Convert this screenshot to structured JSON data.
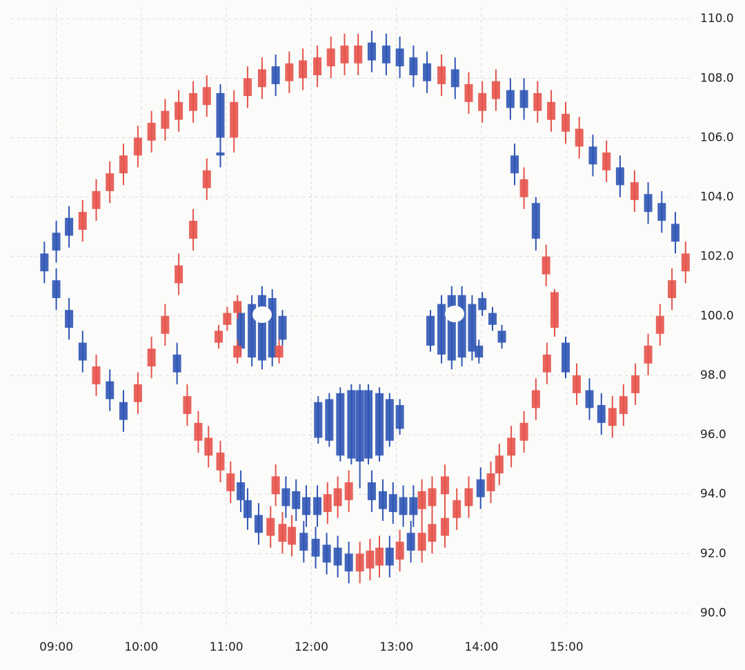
{
  "chart_data": {
    "type": "candlestick",
    "up_color": "#e5534b",
    "down_color": "#2f55b5",
    "grid": true,
    "xlim": [
      8.46,
      16.45
    ],
    "ylim": [
      89.5,
      110.4
    ],
    "xticks": [
      {
        "value": 9,
        "label": "09:00"
      },
      {
        "value": 10,
        "label": "10:00"
      },
      {
        "value": 11,
        "label": "11:00"
      },
      {
        "value": 12,
        "label": "12:00"
      },
      {
        "value": 13,
        "label": "13:00"
      },
      {
        "value": 14,
        "label": "14:00"
      },
      {
        "value": 15,
        "label": "15:00"
      }
    ],
    "yticks": [
      {
        "value": 90,
        "label": "90.0"
      },
      {
        "value": 92,
        "label": "92.0"
      },
      {
        "value": 94,
        "label": "94.0"
      },
      {
        "value": 96,
        "label": "96.0"
      },
      {
        "value": 98,
        "label": "98.0"
      },
      {
        "value": 100,
        "label": "100.0"
      },
      {
        "value": 102,
        "label": "102.0"
      },
      {
        "value": 104,
        "label": "104.0"
      },
      {
        "value": 106,
        "label": "106.0"
      },
      {
        "value": 108,
        "label": "108.0"
      },
      {
        "value": 110,
        "label": "110.0"
      }
    ],
    "x": [
      8.86,
      9.0,
      9.15,
      9.31,
      9.47,
      9.63,
      9.79,
      9.96,
      10.12,
      10.28,
      10.44,
      10.61,
      10.77,
      10.93,
      11.09,
      11.25,
      11.42,
      11.58,
      11.74,
      11.9,
      12.07,
      12.23,
      12.39,
      12.55,
      12.71,
      12.88,
      13.04,
      13.2,
      13.36,
      13.53,
      13.69,
      13.85,
      14.01,
      14.17,
      14.34,
      14.5,
      14.66,
      14.82,
      14.99,
      15.15,
      15.31,
      15.47,
      15.63,
      15.8,
      15.96,
      16.12,
      16.28,
      16.4,
      9.0,
      9.15,
      9.31,
      9.47,
      9.63,
      9.79,
      9.96,
      10.12,
      10.28,
      10.44,
      10.61,
      10.77,
      10.93,
      10.42,
      10.54,
      10.67,
      10.79,
      10.93,
      11.05,
      11.17,
      11.25,
      11.38,
      11.52,
      11.66,
      11.77,
      11.91,
      12.05,
      12.18,
      12.31,
      12.44,
      12.57,
      12.69,
      12.8,
      12.92,
      13.04,
      13.17,
      13.3,
      13.42,
      13.57,
      13.71,
      13.85,
      13.99,
      14.11,
      14.21,
      14.35,
      14.5,
      14.64,
      14.77,
      14.39,
      14.5,
      14.64,
      14.76,
      14.86,
      14.99,
      15.12,
      15.27,
      15.41,
      15.54,
      15.67,
      15.81,
      15.96,
      16.1,
      16.24,
      11.58,
      11.7,
      11.82,
      11.94,
      12.07,
      12.19,
      12.31,
      12.44,
      12.71,
      12.84,
      12.96,
      13.08,
      13.2,
      13.3,
      13.42,
      13.57,
      12.08,
      12.21,
      12.34,
      12.47,
      12.57,
      12.67,
      12.8,
      12.92,
      13.04,
      11.17,
      11.3,
      11.42,
      11.54,
      11.66,
      13.4,
      13.53,
      13.65,
      13.77,
      13.89,
      10.91,
      11.01,
      11.13,
      11.13,
      11.62,
      14.01,
      14.13,
      14.24,
      13.97
    ],
    "ohlc": [
      [
        102.1,
        102.5,
        101.1,
        101.5
      ],
      [
        102.8,
        103.2,
        101.8,
        102.2
      ],
      [
        103.3,
        103.7,
        102.3,
        102.7
      ],
      [
        102.9,
        103.9,
        102.5,
        103.5
      ],
      [
        103.6,
        104.6,
        103.2,
        104.2
      ],
      [
        104.2,
        105.2,
        103.8,
        104.8
      ],
      [
        104.8,
        105.8,
        104.4,
        105.4
      ],
      [
        105.4,
        106.4,
        105.0,
        106.0
      ],
      [
        105.9,
        106.9,
        105.5,
        106.5
      ],
      [
        106.3,
        107.3,
        105.9,
        106.9
      ],
      [
        106.6,
        107.6,
        106.2,
        107.2
      ],
      [
        106.9,
        107.9,
        106.5,
        107.5
      ],
      [
        107.1,
        108.1,
        106.7,
        107.7
      ],
      [
        107.5,
        107.8,
        105.8,
        106.0
      ],
      [
        106.0,
        107.6,
        105.5,
        107.2
      ],
      [
        107.4,
        108.4,
        107.0,
        108.0
      ],
      [
        107.7,
        108.7,
        107.3,
        108.3
      ],
      [
        108.4,
        108.8,
        107.4,
        107.8
      ],
      [
        107.9,
        108.9,
        107.5,
        108.5
      ],
      [
        108.0,
        109.0,
        107.6,
        108.6
      ],
      [
        108.1,
        109.1,
        107.7,
        108.7
      ],
      [
        108.4,
        109.4,
        108.0,
        109.0
      ],
      [
        108.5,
        109.5,
        108.1,
        109.1
      ],
      [
        108.5,
        109.5,
        108.1,
        109.1
      ],
      [
        109.2,
        109.6,
        108.2,
        108.6
      ],
      [
        109.1,
        109.5,
        108.1,
        108.5
      ],
      [
        109.0,
        109.4,
        108.0,
        108.4
      ],
      [
        108.7,
        109.1,
        107.7,
        108.1
      ],
      [
        108.5,
        108.9,
        107.5,
        107.9
      ],
      [
        107.8,
        108.8,
        107.4,
        108.4
      ],
      [
        108.3,
        108.7,
        107.3,
        107.7
      ],
      [
        107.2,
        108.2,
        106.8,
        107.8
      ],
      [
        106.9,
        107.9,
        106.5,
        107.5
      ],
      [
        107.3,
        108.3,
        106.9,
        107.9
      ],
      [
        107.6,
        108.0,
        106.6,
        107.0
      ],
      [
        107.6,
        108.0,
        106.6,
        107.0
      ],
      [
        106.9,
        107.9,
        106.5,
        107.5
      ],
      [
        106.6,
        107.6,
        106.2,
        107.2
      ],
      [
        106.2,
        107.2,
        105.8,
        106.8
      ],
      [
        105.7,
        106.7,
        105.3,
        106.3
      ],
      [
        105.7,
        106.1,
        104.7,
        105.1
      ],
      [
        104.9,
        105.9,
        104.5,
        105.5
      ],
      [
        105.0,
        105.4,
        104.0,
        104.4
      ],
      [
        103.9,
        104.9,
        103.5,
        104.5
      ],
      [
        104.1,
        104.5,
        103.1,
        103.5
      ],
      [
        103.8,
        104.2,
        102.8,
        103.2
      ],
      [
        103.1,
        103.5,
        102.1,
        102.5
      ],
      [
        101.5,
        102.5,
        101.1,
        102.1
      ],
      [
        101.2,
        101.6,
        100.2,
        100.6
      ],
      [
        100.2,
        100.6,
        99.2,
        99.6
      ],
      [
        99.1,
        99.5,
        98.1,
        98.5
      ],
      [
        97.7,
        98.7,
        97.3,
        98.3
      ],
      [
        97.8,
        98.2,
        96.8,
        97.2
      ],
      [
        97.1,
        97.5,
        96.1,
        96.5
      ],
      [
        97.1,
        98.1,
        96.7,
        97.7
      ],
      [
        98.3,
        99.3,
        97.9,
        98.9
      ],
      [
        99.4,
        100.4,
        99.0,
        100.0
      ],
      [
        101.1,
        102.1,
        100.7,
        101.7
      ],
      [
        102.6,
        103.6,
        102.2,
        103.2
      ],
      [
        104.3,
        105.3,
        103.9,
        104.9
      ],
      [
        105.5,
        105.8,
        105.0,
        105.4
      ],
      [
        98.7,
        99.1,
        97.7,
        98.1
      ],
      [
        96.7,
        97.7,
        96.3,
        97.3
      ],
      [
        95.8,
        96.8,
        95.4,
        96.4
      ],
      [
        95.3,
        96.3,
        94.9,
        95.9
      ],
      [
        94.8,
        95.8,
        94.4,
        95.4
      ],
      [
        94.1,
        95.1,
        93.7,
        94.7
      ],
      [
        94.4,
        94.8,
        93.4,
        93.8
      ],
      [
        93.8,
        94.2,
        92.8,
        93.2
      ],
      [
        93.3,
        93.7,
        92.3,
        92.7
      ],
      [
        92.6,
        93.6,
        92.2,
        93.2
      ],
      [
        92.4,
        93.4,
        92.0,
        93.0
      ],
      [
        92.3,
        93.3,
        91.9,
        92.9
      ],
      [
        92.7,
        93.1,
        91.7,
        92.1
      ],
      [
        92.5,
        92.9,
        91.5,
        91.9
      ],
      [
        92.3,
        92.7,
        91.3,
        91.7
      ],
      [
        92.2,
        92.6,
        91.2,
        91.6
      ],
      [
        92.0,
        92.4,
        91.0,
        91.4
      ],
      [
        91.4,
        92.4,
        91.0,
        92.0
      ],
      [
        91.5,
        92.5,
        91.1,
        92.1
      ],
      [
        91.6,
        92.6,
        91.2,
        92.2
      ],
      [
        92.2,
        92.6,
        91.2,
        91.6
      ],
      [
        91.8,
        92.8,
        91.4,
        92.4
      ],
      [
        92.7,
        93.1,
        91.7,
        92.1
      ],
      [
        92.1,
        93.1,
        91.7,
        92.7
      ],
      [
        92.4,
        93.4,
        92.0,
        93.0
      ],
      [
        92.6,
        93.6,
        92.2,
        93.2
      ],
      [
        93.2,
        94.2,
        92.8,
        93.8
      ],
      [
        93.6,
        94.6,
        93.2,
        94.2
      ],
      [
        94.5,
        94.9,
        93.5,
        93.9
      ],
      [
        94.1,
        95.1,
        93.7,
        94.7
      ],
      [
        94.7,
        95.7,
        94.3,
        95.3
      ],
      [
        95.3,
        96.3,
        94.9,
        95.9
      ],
      [
        95.8,
        96.8,
        95.4,
        96.4
      ],
      [
        96.9,
        97.9,
        96.5,
        97.5
      ],
      [
        98.1,
        99.1,
        97.7,
        98.7
      ],
      [
        105.4,
        105.8,
        104.4,
        104.8
      ],
      [
        104.0,
        105.0,
        103.6,
        104.6
      ],
      [
        103.8,
        104.0,
        102.2,
        102.6
      ],
      [
        101.4,
        102.4,
        101.0,
        102.0
      ],
      [
        99.6,
        100.9,
        99.3,
        100.8
      ],
      [
        99.1,
        99.3,
        97.9,
        98.1
      ],
      [
        97.4,
        98.4,
        97.0,
        98.0
      ],
      [
        97.5,
        97.9,
        96.5,
        96.9
      ],
      [
        97.0,
        97.4,
        96.0,
        96.4
      ],
      [
        96.3,
        97.3,
        95.9,
        96.9
      ],
      [
        96.7,
        97.7,
        96.3,
        97.3
      ],
      [
        97.4,
        98.4,
        97.0,
        98.0
      ],
      [
        98.4,
        99.4,
        98.0,
        99.0
      ],
      [
        99.4,
        100.4,
        99.0,
        100.0
      ],
      [
        100.6,
        101.6,
        100.2,
        101.2
      ],
      [
        94.0,
        95.0,
        93.6,
        94.6
      ],
      [
        94.2,
        94.6,
        93.2,
        93.6
      ],
      [
        94.1,
        94.5,
        93.1,
        93.5
      ],
      [
        93.9,
        94.3,
        92.9,
        93.3
      ],
      [
        93.9,
        94.3,
        92.9,
        93.3
      ],
      [
        93.4,
        94.4,
        93.0,
        94.0
      ],
      [
        93.6,
        94.6,
        93.2,
        94.2
      ],
      [
        93.8,
        94.8,
        93.4,
        94.4
      ],
      [
        94.4,
        94.8,
        93.4,
        93.8
      ],
      [
        94.1,
        94.5,
        93.1,
        93.5
      ],
      [
        94.0,
        94.4,
        93.0,
        93.4
      ],
      [
        93.9,
        94.3,
        92.9,
        93.3
      ],
      [
        93.9,
        94.3,
        92.9,
        93.3
      ],
      [
        93.5,
        94.5,
        93.1,
        94.1
      ],
      [
        93.6,
        94.6,
        93.2,
        94.2
      ],
      [
        94.0,
        95.0,
        93.6,
        94.6
      ],
      [
        97.1,
        97.3,
        95.7,
        95.9
      ],
      [
        97.2,
        97.4,
        95.6,
        95.8
      ],
      [
        97.4,
        97.6,
        95.1,
        95.3
      ],
      [
        97.5,
        97.7,
        95.0,
        95.2
      ],
      [
        97.5,
        97.7,
        94.2,
        95.1
      ],
      [
        97.5,
        97.7,
        95.0,
        95.2
      ],
      [
        97.4,
        97.6,
        95.1,
        95.3
      ],
      [
        97.2,
        97.4,
        95.6,
        95.8
      ],
      [
        97.0,
        97.2,
        96.0,
        96.2
      ],
      [
        100.1,
        100.3,
        98.7,
        98.9
      ],
      [
        100.4,
        100.7,
        98.3,
        98.6
      ],
      [
        100.7,
        101.0,
        98.2,
        98.5
      ],
      [
        100.6,
        100.9,
        98.3,
        98.6
      ],
      [
        100.0,
        100.2,
        99.0,
        99.2
      ],
      [
        100.0,
        100.2,
        98.8,
        99.0
      ],
      [
        100.4,
        100.7,
        98.4,
        98.7
      ],
      [
        100.7,
        101.0,
        98.2,
        98.5
      ],
      [
        100.7,
        101.0,
        98.3,
        98.6
      ],
      [
        100.4,
        100.7,
        98.5,
        98.8
      ],
      [
        99.1,
        99.7,
        98.9,
        99.5
      ],
      [
        99.7,
        100.3,
        99.5,
        100.1
      ],
      [
        100.1,
        100.7,
        99.9,
        100.5
      ],
      [
        98.6,
        99.2,
        98.4,
        99.0
      ],
      [
        98.6,
        99.2,
        98.4,
        99.0
      ],
      [
        100.6,
        100.8,
        100.0,
        100.2
      ],
      [
        100.1,
        100.3,
        99.5,
        99.7
      ],
      [
        99.5,
        99.7,
        98.9,
        99.1
      ],
      [
        99.0,
        99.2,
        98.4,
        98.6
      ]
    ]
  }
}
